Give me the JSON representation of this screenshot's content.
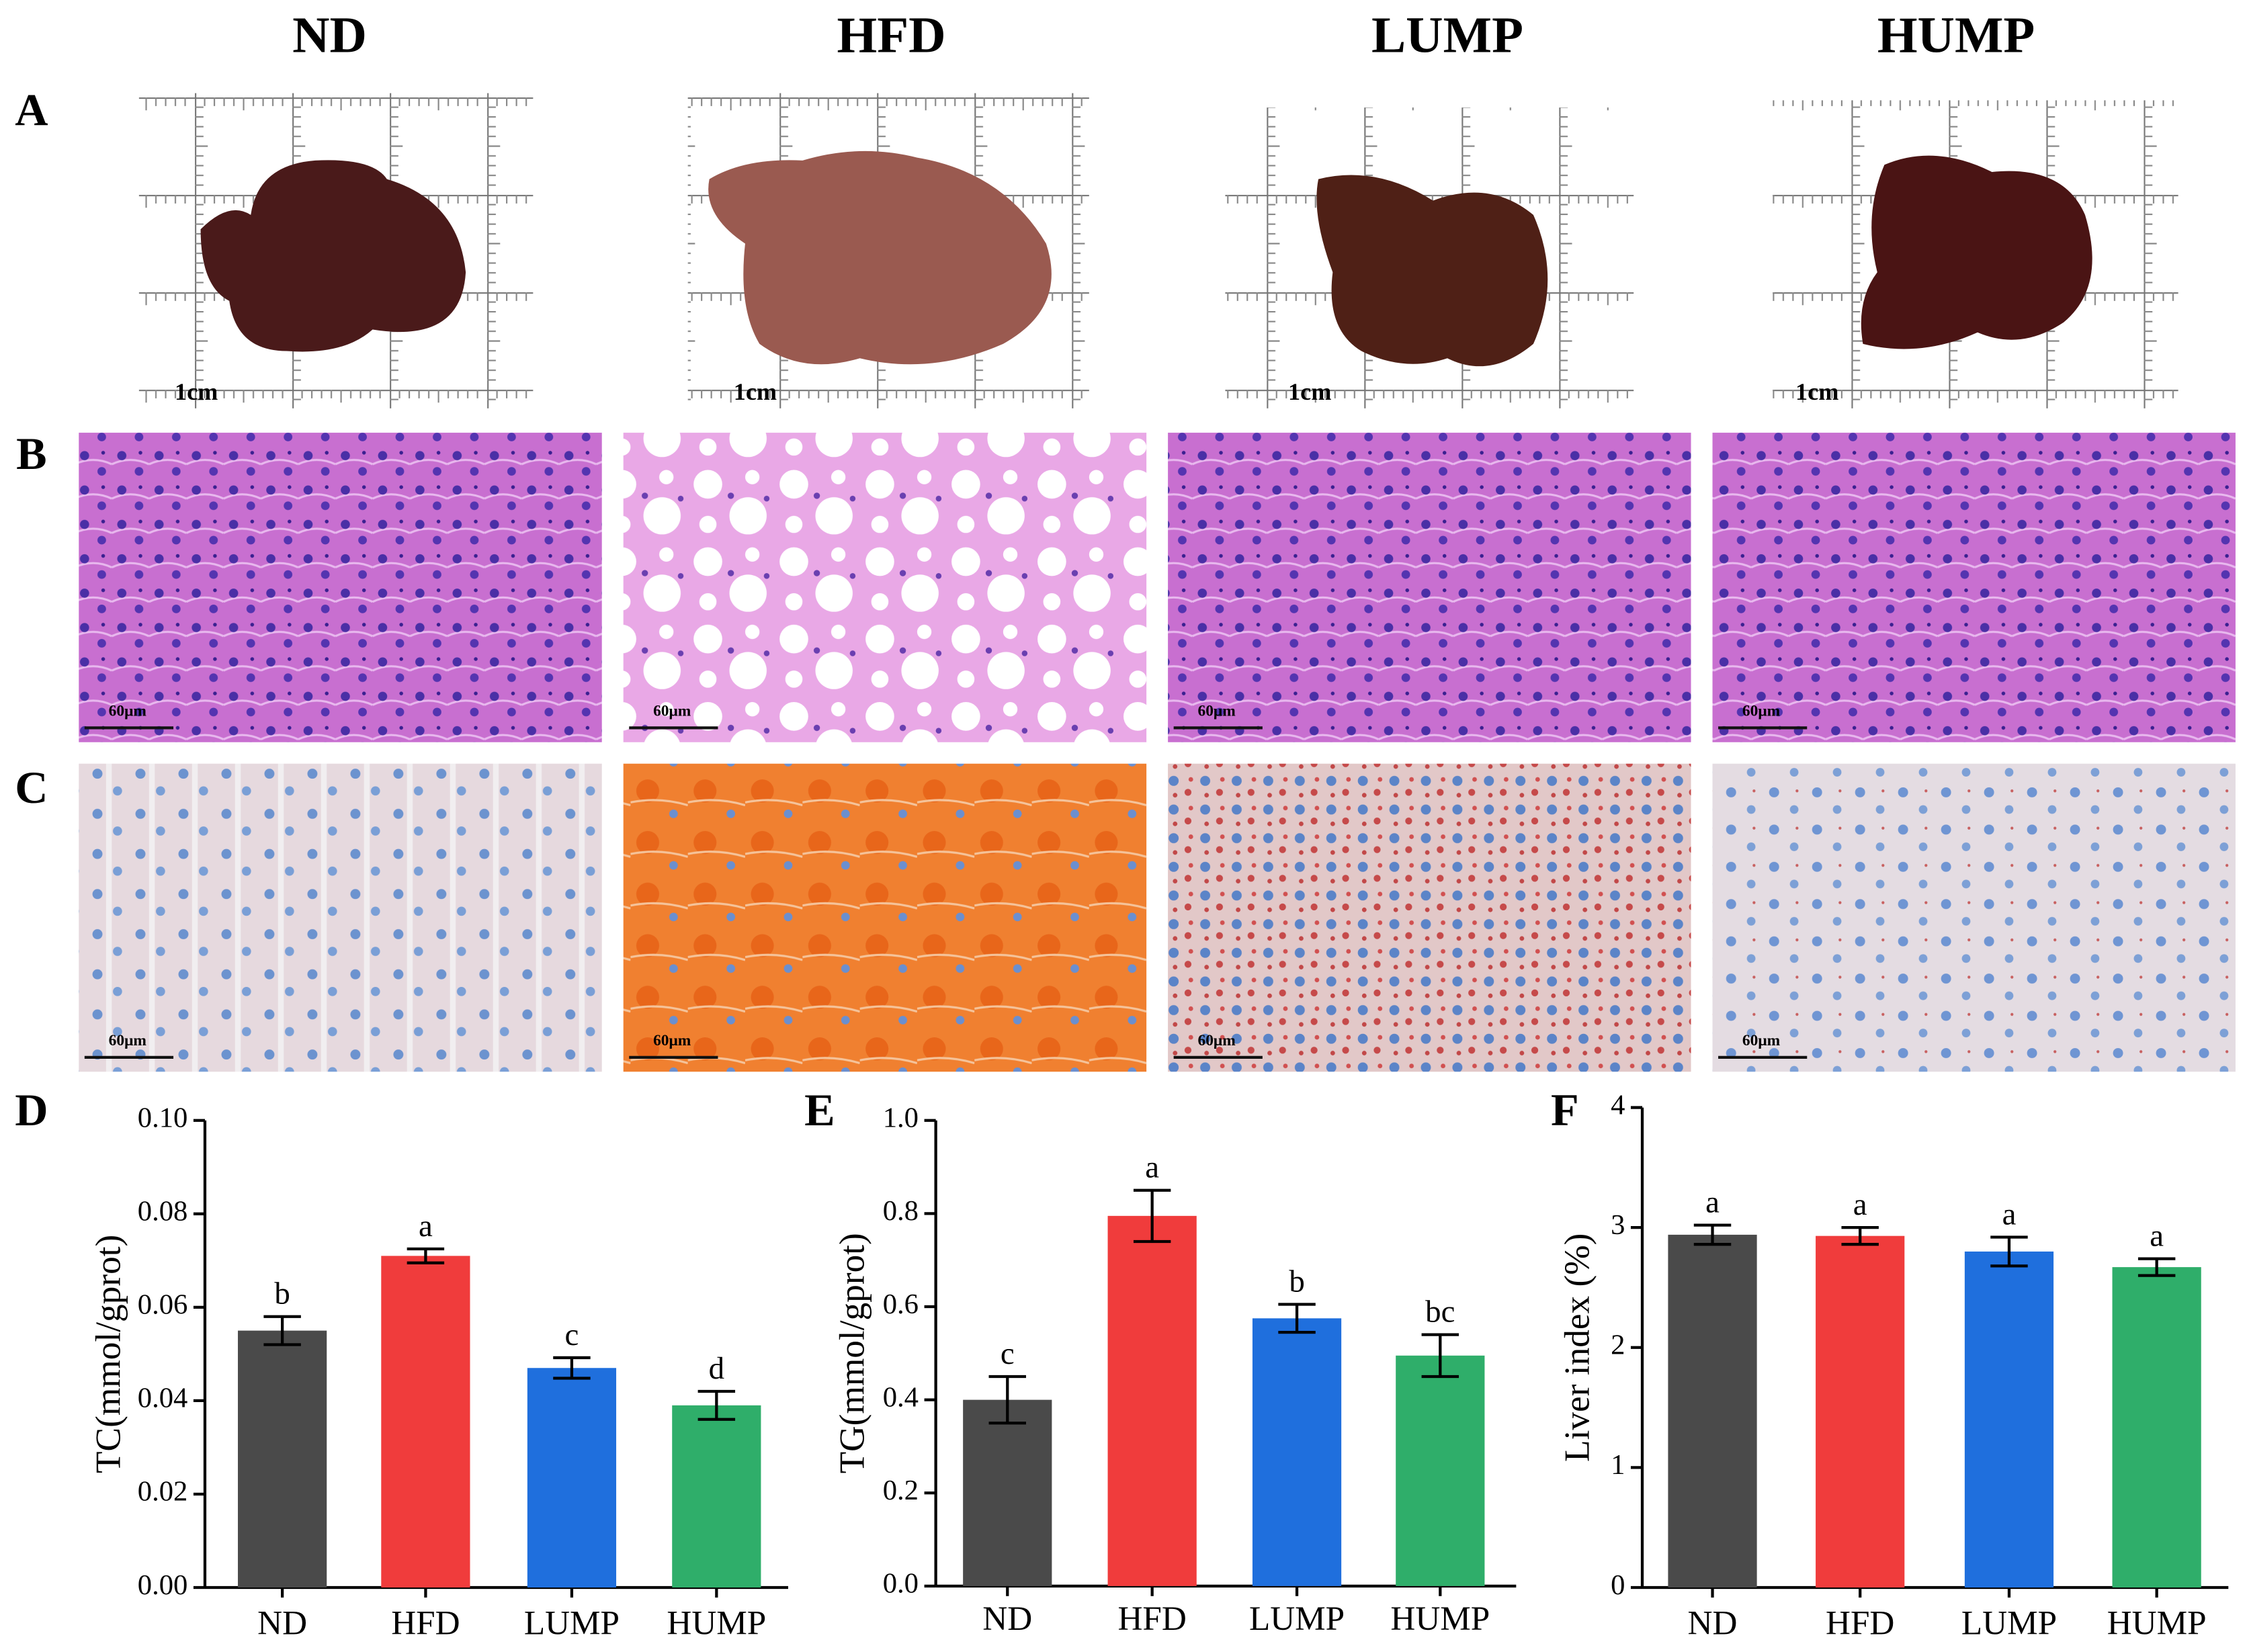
{
  "figure": {
    "columns": [
      "ND",
      "HFD",
      "LUMP",
      "HUMP"
    ],
    "panel_labels": [
      "A",
      "B",
      "C",
      "D",
      "E",
      "F"
    ],
    "gross_scale_labels": [
      "1cm",
      "1cm",
      "1cm",
      "1cm"
    ],
    "he_scale_labels": [
      "60μm",
      "60μm",
      "60μm",
      "60μm"
    ],
    "oil_red_scale_labels": [
      "60μm",
      "60μm",
      "60μm",
      "60μm"
    ]
  },
  "chart_data": [
    {
      "type": "bar",
      "y_label": "TC(mmol/gprot)",
      "categories": [
        "ND",
        "HFD",
        "LUMP",
        "HUMP"
      ],
      "values": [
        0.055,
        0.071,
        0.047,
        0.039
      ],
      "errors": [
        0.003,
        0.0015,
        0.0022,
        0.003
      ],
      "annotations": [
        "b",
        "a",
        "c",
        "d"
      ],
      "colors": [
        "#4a4a4a",
        "#f03c3c",
        "#1f6fdd",
        "#2fae6a"
      ],
      "ylim": [
        0,
        0.1
      ],
      "yticks": [
        {
          "value": 0,
          "label": "0.00"
        },
        {
          "value": 0.02,
          "label": "0.02"
        },
        {
          "value": 0.04,
          "label": "0.04"
        },
        {
          "value": 0.06,
          "label": "0.06"
        },
        {
          "value": 0.08,
          "label": "0.08"
        },
        {
          "value": 0.1,
          "label": "0.10"
        }
      ]
    },
    {
      "type": "bar",
      "y_label": "TG(mmol/gprot)",
      "categories": [
        "ND",
        "HFD",
        "LUMP",
        "HUMP"
      ],
      "values": [
        0.4,
        0.795,
        0.575,
        0.495
      ],
      "errors": [
        0.05,
        0.055,
        0.03,
        0.045
      ],
      "annotations": [
        "c",
        "a",
        "b",
        "bc"
      ],
      "colors": [
        "#4a4a4a",
        "#f03c3c",
        "#1f6fdd",
        "#2fae6a"
      ],
      "ylim": [
        0,
        1
      ],
      "yticks": [
        {
          "value": 0,
          "label": "0.0"
        },
        0.2,
        0.4,
        0.6,
        0.8,
        {
          "value": 1,
          "label": "1.0"
        }
      ]
    },
    {
      "type": "bar",
      "y_label": "Liver index (%)",
      "categories": [
        "ND",
        "HFD",
        "LUMP",
        "HUMP"
      ],
      "values": [
        2.94,
        2.93,
        2.8,
        2.67
      ],
      "errors": [
        0.08,
        0.07,
        0.12,
        0.07
      ],
      "annotations": [
        "a",
        "a",
        "a",
        "a"
      ],
      "colors": [
        "#4a4a4a",
        "#f03c3c",
        "#1f6fdd",
        "#2fae6a"
      ],
      "ylim": [
        0,
        4
      ],
      "yticks": [
        0,
        1,
        2,
        3,
        4
      ]
    }
  ]
}
